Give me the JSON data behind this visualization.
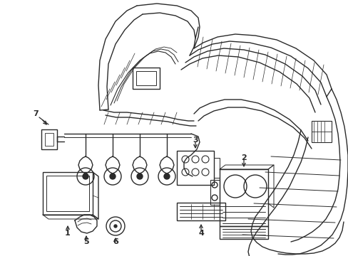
{
  "bg_color": "#ffffff",
  "line_color": "#2a2a2a",
  "fig_width": 4.89,
  "fig_height": 3.6,
  "dpi": 100,
  "lw": 1.0
}
